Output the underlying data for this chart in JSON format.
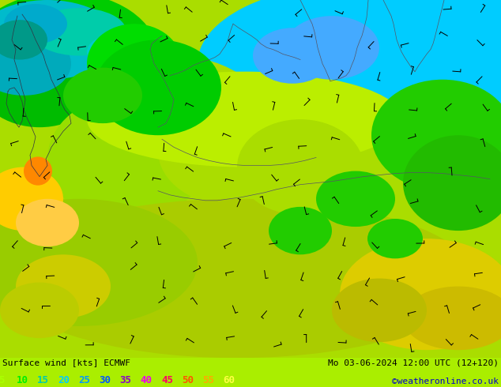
{
  "title_left": "Surface wind [kts] ECMWF",
  "title_right": "Mo 03-06-2024 12:00 UTC (12+120)",
  "credit": "©weatheronline.co.uk",
  "legend_values": [
    5,
    10,
    15,
    20,
    25,
    30,
    35,
    40,
    45,
    50,
    55,
    60
  ],
  "legend_colors": [
    "#aaff00",
    "#00ee00",
    "#00ccaa",
    "#00ccff",
    "#0099ff",
    "#0055ff",
    "#8800cc",
    "#ee00ee",
    "#ff0066",
    "#ff5500",
    "#ffaa00",
    "#ffff44"
  ],
  "fig_width": 6.34,
  "fig_height": 4.9,
  "dpi": 100,
  "bottom_bg": "#aaee00",
  "title_font_size": 8.0,
  "legend_font_size": 9,
  "credit_font_size": 8,
  "credit_color": "#0000cc"
}
